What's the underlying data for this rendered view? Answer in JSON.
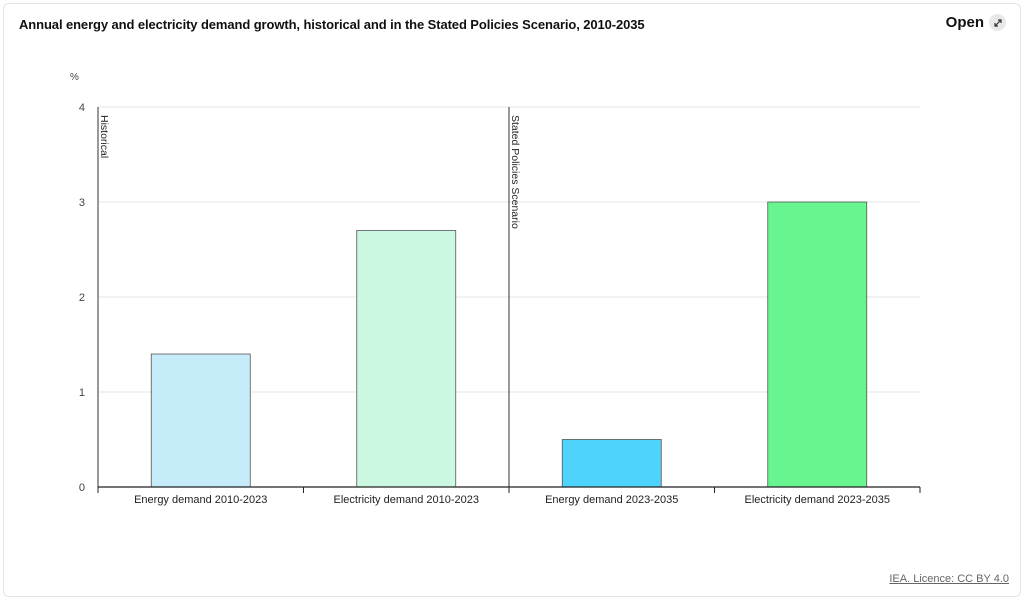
{
  "header": {
    "title": "Annual energy and electricity demand growth, historical and in the Stated Policies Scenario, 2010-2035",
    "open_label": "Open",
    "open_icon": "expand-arrows-icon"
  },
  "footer": {
    "licence_label": "IEA. Licence: CC BY 4.0"
  },
  "chart_data": {
    "type": "bar",
    "title": "Annual energy and electricity demand growth, historical and in the Stated Policies Scenario, 2010-2035",
    "ylabel": "%",
    "ylim": [
      0,
      4
    ],
    "yticks": [
      0,
      1,
      2,
      3,
      4
    ],
    "grid": true,
    "categories": [
      "Energy demand 2010-2023",
      "Electricity demand 2010-2023",
      "Energy demand 2023-2035",
      "Electricity demand 2023-2035"
    ],
    "values": [
      1.4,
      2.7,
      0.5,
      3.0
    ],
    "colors": [
      "#c6ecfa",
      "#ccf7e1",
      "#4dd3fc",
      "#68f48e"
    ],
    "annotations": [
      {
        "label": "Historical",
        "at_category": 0
      },
      {
        "label": "Stated Policies Scenario",
        "at_category": 2
      }
    ]
  }
}
